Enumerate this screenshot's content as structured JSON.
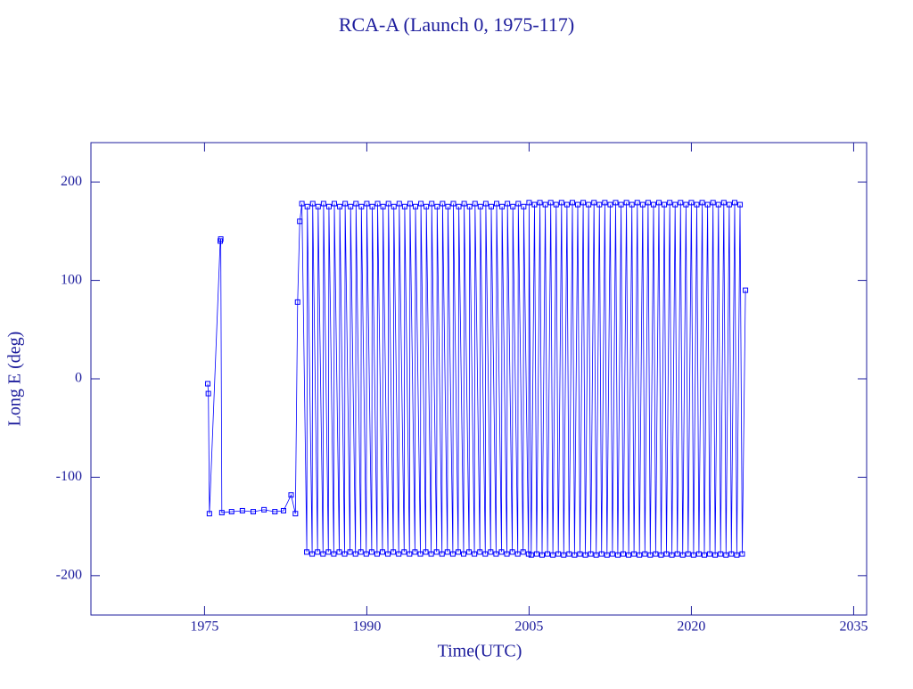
{
  "chart_data": {
    "type": "line",
    "title": "RCA-A (Launch 0, 1975-117)",
    "x_label": "Time(UTC)",
    "y_label": "Long E (deg)",
    "xlim": [
      1964.5,
      2036.2
    ],
    "xticks": [
      1975,
      1990,
      2005,
      2020,
      2035
    ],
    "ylim": [
      -240,
      240
    ],
    "yticks": [
      -200,
      -100,
      0,
      100,
      200
    ],
    "series": [
      {
        "color": "#0000ff",
        "x": [
          1975.3,
          1975.35,
          1975.45,
          1976.45,
          1976.5,
          1976.6,
          1977.5,
          1978.5,
          1979.5,
          1980.5,
          1981.5,
          1982.3,
          1983.0,
          1983.4,
          1983.6,
          1983.8,
          1984,
          1984.45,
          1984.5,
          1984.95,
          1985,
          1985.45,
          1985.5,
          1985.95,
          1986,
          1986.45,
          1986.5,
          1986.95,
          1987,
          1987.45,
          1987.5,
          1987.95,
          1988,
          1988.45,
          1988.5,
          1988.95,
          1989,
          1989.45,
          1989.5,
          1989.95,
          1990,
          1990.45,
          1990.5,
          1990.95,
          1991,
          1991.45,
          1991.5,
          1991.95,
          1992,
          1992.45,
          1992.5,
          1992.95,
          1993,
          1993.45,
          1993.5,
          1993.95,
          1994,
          1994.45,
          1994.5,
          1994.95,
          1995,
          1995.45,
          1995.5,
          1995.95,
          1996,
          1996.45,
          1996.5,
          1996.95,
          1997,
          1997.45,
          1997.5,
          1997.95,
          1998,
          1998.45,
          1998.5,
          1998.95,
          1999,
          1999.45,
          1999.5,
          1999.95,
          2000,
          2000.45,
          2000.5,
          2000.95,
          2001,
          2001.45,
          2001.5,
          2001.95,
          2002,
          2002.45,
          2002.5,
          2002.95,
          2003,
          2003.45,
          2003.5,
          2003.95,
          2004,
          2004.45,
          2004.5,
          2004.95,
          2005,
          2005.2,
          2005.5,
          2005.7,
          2006,
          2006.2,
          2006.5,
          2006.7,
          2007,
          2007.2,
          2007.5,
          2007.7,
          2008,
          2008.2,
          2008.5,
          2008.7,
          2009,
          2009.2,
          2009.5,
          2009.7,
          2010,
          2010.2,
          2010.5,
          2010.7,
          2011,
          2011.2,
          2011.5,
          2011.7,
          2012,
          2012.2,
          2012.5,
          2012.7,
          2013,
          2013.2,
          2013.5,
          2013.7,
          2014,
          2014.2,
          2014.5,
          2014.7,
          2015,
          2015.2,
          2015.5,
          2015.7,
          2016,
          2016.2,
          2016.5,
          2016.7,
          2017,
          2017.2,
          2017.5,
          2017.7,
          2018,
          2018.2,
          2018.5,
          2018.7,
          2019,
          2019.2,
          2019.5,
          2019.7,
          2020,
          2020.2,
          2020.5,
          2020.7,
          2021,
          2021.2,
          2021.5,
          2021.7,
          2022,
          2022.2,
          2022.5,
          2022.7,
          2023,
          2023.2,
          2023.5,
          2023.7,
          2024,
          2024.2,
          2024.5,
          2024.7,
          2025.0
        ],
        "values": [
          -5,
          -15,
          -137,
          140,
          142,
          -136,
          -135,
          -134,
          -135,
          -133,
          -135,
          -134,
          -118,
          -137,
          78,
          160,
          178,
          -176,
          175,
          -178,
          178,
          -176,
          175,
          -178,
          178,
          -176,
          175,
          -178,
          178,
          -176,
          175,
          -178,
          178,
          -176,
          175,
          -178,
          178,
          -176,
          175,
          -178,
          178,
          -176,
          175,
          -178,
          178,
          -176,
          175,
          -178,
          178,
          -176,
          175,
          -178,
          178,
          -176,
          175,
          -178,
          178,
          -176,
          175,
          -178,
          178,
          -176,
          175,
          -178,
          178,
          -176,
          175,
          -178,
          178,
          -176,
          175,
          -178,
          178,
          -176,
          175,
          -178,
          178,
          -176,
          175,
          -178,
          178,
          -176,
          175,
          -178,
          178,
          -176,
          175,
          -178,
          178,
          -176,
          175,
          -178,
          178,
          -176,
          175,
          -178,
          178,
          -176,
          175,
          -178,
          179,
          -179,
          177,
          -178,
          179,
          -179,
          177,
          -178,
          179,
          -179,
          177,
          -178,
          179,
          -179,
          177,
          -178,
          179,
          -179,
          177,
          -178,
          179,
          -179,
          177,
          -178,
          179,
          -179,
          177,
          -178,
          179,
          -179,
          177,
          -178,
          179,
          -179,
          177,
          -178,
          179,
          -179,
          177,
          -178,
          179,
          -179,
          177,
          -178,
          179,
          -179,
          177,
          -178,
          179,
          -179,
          177,
          -178,
          179,
          -179,
          177,
          -178,
          179,
          -179,
          177,
          -178,
          179,
          -179,
          177,
          -178,
          179,
          -179,
          177,
          -178,
          179,
          -179,
          177,
          -178,
          179,
          -179,
          177,
          -178,
          179,
          -179,
          177,
          -178,
          90
        ]
      }
    ]
  }
}
